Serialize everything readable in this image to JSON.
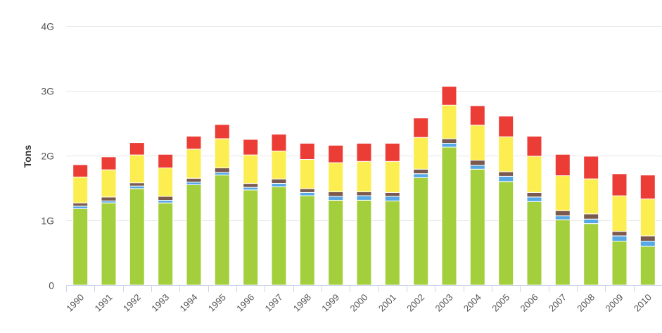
{
  "chart_data": {
    "type": "bar",
    "stacked": true,
    "title": "",
    "xlabel": "",
    "ylabel": "Tons",
    "ylim": [
      0,
      4000000000
    ],
    "yticks": [
      {
        "value": 0,
        "label": "0"
      },
      {
        "value": 1000000000,
        "label": "1G"
      },
      {
        "value": 2000000000,
        "label": "2G"
      },
      {
        "value": 3000000000,
        "label": "3G"
      },
      {
        "value": 4000000000,
        "label": "4G"
      }
    ],
    "grid": true,
    "legend": "none",
    "categories": [
      "1990",
      "1991",
      "1992",
      "1993",
      "1994",
      "1995",
      "1996",
      "1997",
      "1998",
      "1999",
      "2000",
      "2001",
      "2002",
      "2003",
      "2004",
      "2005",
      "2006",
      "2007",
      "2008",
      "2009",
      "2010"
    ],
    "series": [
      {
        "color": "#a4cf3c",
        "values": [
          1180000000,
          1270000000,
          1490000000,
          1270000000,
          1550000000,
          1700000000,
          1470000000,
          1520000000,
          1380000000,
          1310000000,
          1310000000,
          1300000000,
          1660000000,
          2130000000,
          1790000000,
          1600000000,
          1290000000,
          1010000000,
          950000000,
          680000000,
          600000000
        ]
      },
      {
        "color": "#57a8e6",
        "values": [
          40000000,
          30000000,
          40000000,
          40000000,
          40000000,
          40000000,
          40000000,
          50000000,
          50000000,
          60000000,
          70000000,
          70000000,
          60000000,
          60000000,
          60000000,
          80000000,
          70000000,
          60000000,
          70000000,
          80000000,
          80000000
        ]
      },
      {
        "color": "#7a5a4e",
        "values": [
          50000000,
          60000000,
          50000000,
          60000000,
          60000000,
          70000000,
          60000000,
          70000000,
          60000000,
          70000000,
          60000000,
          60000000,
          70000000,
          70000000,
          80000000,
          70000000,
          70000000,
          80000000,
          80000000,
          70000000,
          80000000
        ]
      },
      {
        "color": "#fcee50",
        "values": [
          400000000,
          420000000,
          430000000,
          440000000,
          450000000,
          450000000,
          440000000,
          430000000,
          450000000,
          450000000,
          470000000,
          480000000,
          490000000,
          520000000,
          540000000,
          540000000,
          560000000,
          540000000,
          540000000,
          550000000,
          570000000
        ]
      },
      {
        "color": "#ec3c36",
        "values": [
          190000000,
          200000000,
          190000000,
          210000000,
          200000000,
          220000000,
          240000000,
          260000000,
          250000000,
          270000000,
          280000000,
          280000000,
          300000000,
          290000000,
          300000000,
          320000000,
          310000000,
          330000000,
          350000000,
          340000000,
          370000000
        ]
      }
    ]
  }
}
